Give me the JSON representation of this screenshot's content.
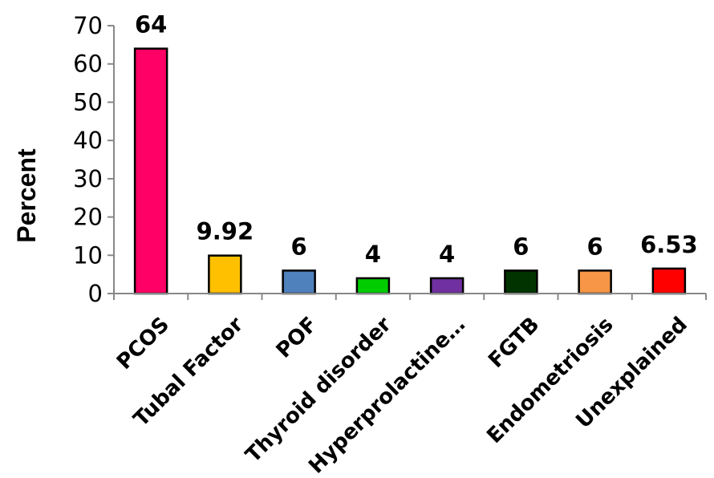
{
  "chart_data": {
    "type": "bar",
    "title": "",
    "xlabel": "",
    "ylabel": "Percent",
    "ylim": [
      0,
      70
    ],
    "yticks": [
      0,
      10,
      20,
      30,
      40,
      50,
      60,
      70
    ],
    "grid": false,
    "legend": "none",
    "categories": [
      "PCOS",
      "Tubal Factor",
      "POF",
      "Thyroid disorder",
      "Hyperprolactine…",
      "FGTB",
      "Endometriosis",
      "Unexplained"
    ],
    "values": [
      64,
      9.92,
      6,
      4,
      4,
      6,
      6,
      6.53
    ],
    "data_labels": [
      "64",
      "9.92",
      "6",
      "4",
      "4",
      "6",
      "6",
      "6.53"
    ],
    "colors": [
      "#ff0066",
      "#ffc000",
      "#4f81bd",
      "#00cc00",
      "#7030a0",
      "#003300",
      "#f79646",
      "#ff0000"
    ]
  }
}
